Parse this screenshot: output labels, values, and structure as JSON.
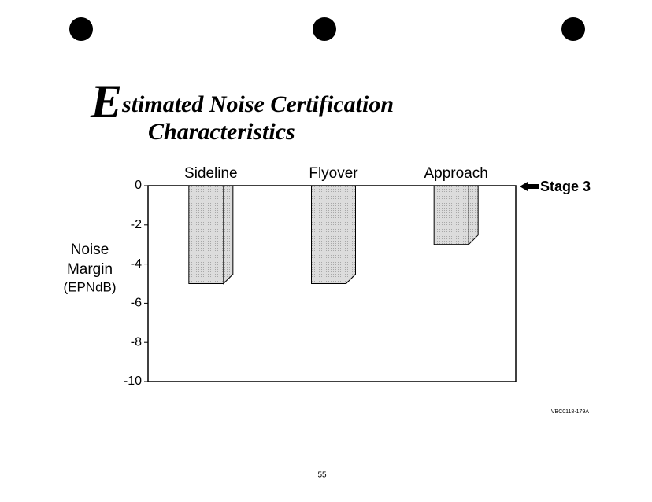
{
  "chart_data": {
    "type": "bar",
    "title": [
      "Estimated Noise Certification",
      "Characteristics"
    ],
    "y_label": [
      "Noise",
      "Margin",
      "(EPNdB)"
    ],
    "categories": [
      "Sideline",
      "Flyover",
      "Approach"
    ],
    "values": [
      -5,
      -5,
      -3
    ],
    "color": "#d9d9d9",
    "ylim": [
      -10,
      0
    ],
    "yticks": [
      0,
      -2,
      -4,
      -6,
      -8,
      -10
    ],
    "annotation": "Stage 3"
  },
  "footer": {
    "code": "VBC0118-179A",
    "page": "55"
  }
}
